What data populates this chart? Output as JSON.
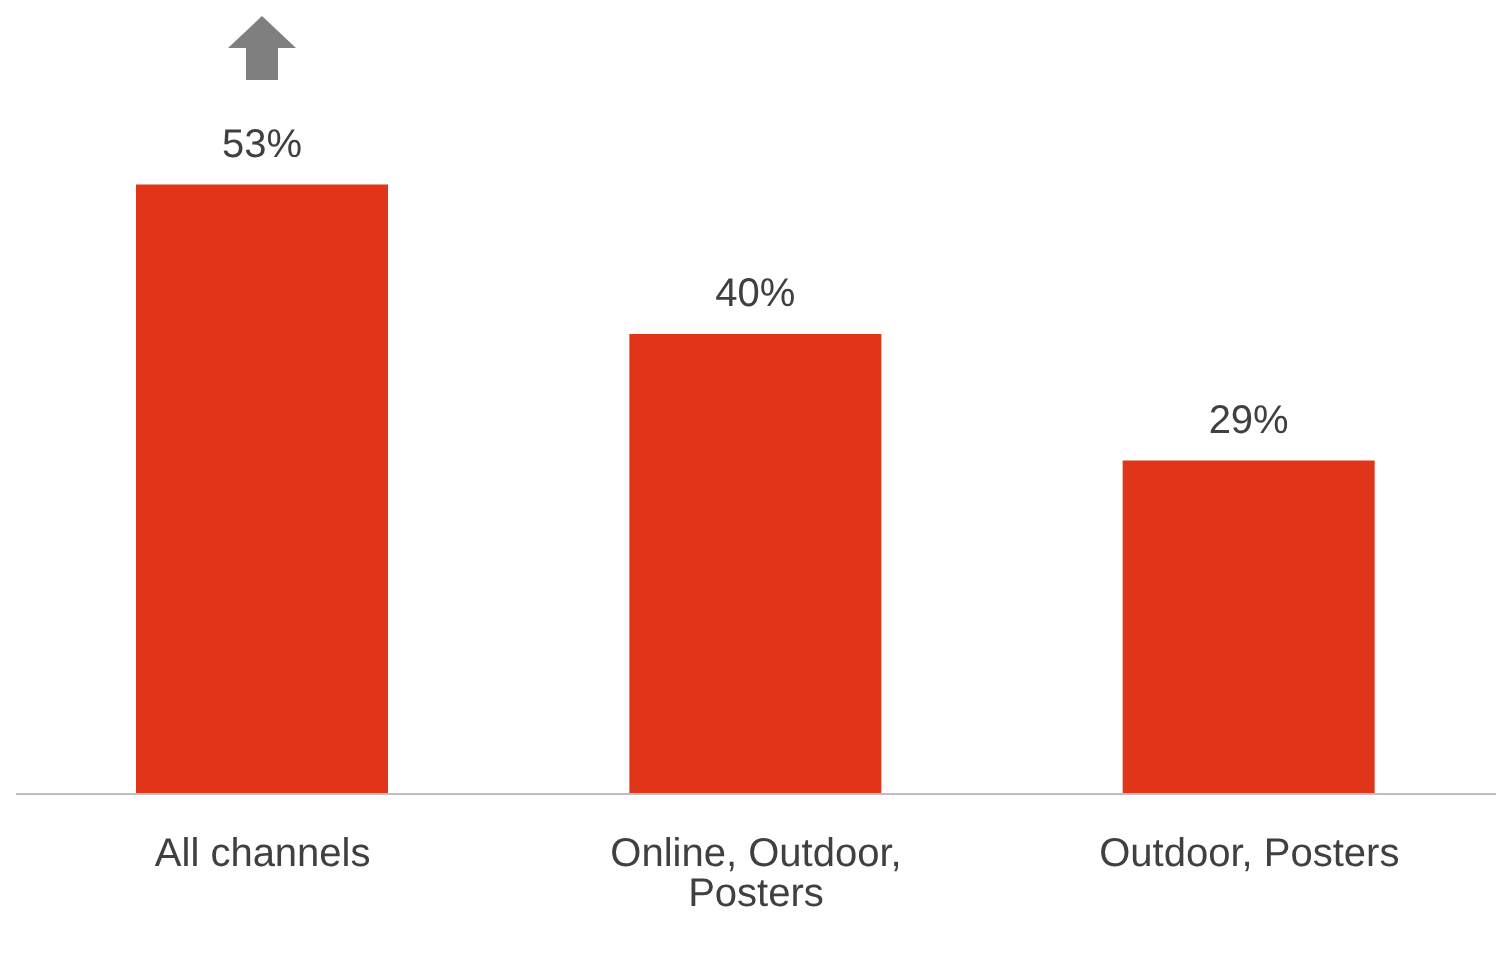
{
  "chart_data": {
    "type": "bar",
    "categories": [
      "All channels",
      "Online, Outdoor, Posters",
      "Outdoor, Posters"
    ],
    "values": [
      53,
      40,
      29
    ],
    "color": "#e03518",
    "value_labels": [
      "53%",
      "40%",
      "29%"
    ],
    "tick_labels": "x"
  }
}
